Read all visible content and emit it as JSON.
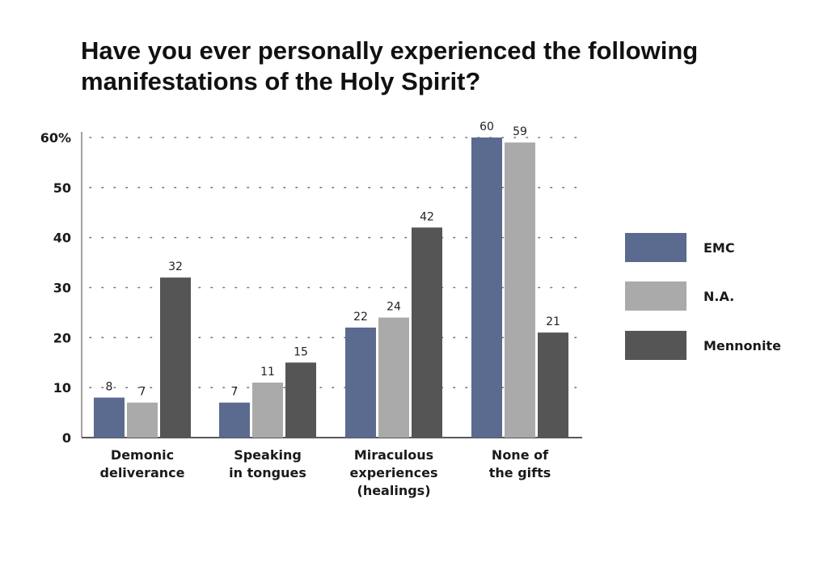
{
  "chart_data": {
    "type": "bar",
    "title": "Have you ever personally experienced the following manifestations of the Holy Spirit?",
    "xlabel": "",
    "ylabel": "",
    "ylim": [
      0,
      60
    ],
    "y_ticks": [
      "0",
      "10",
      "20",
      "30",
      "40",
      "50",
      "60%"
    ],
    "y_tick_values": [
      0,
      10,
      20,
      30,
      40,
      50,
      60
    ],
    "grid": "dotted horizontal",
    "legend_position": "right",
    "categories": [
      [
        "Demonic",
        "deliverance"
      ],
      [
        "Speaking",
        "in tongues"
      ],
      [
        "Miraculous",
        "experiences",
        "(healings)"
      ],
      [
        "None of",
        "the gifts"
      ]
    ],
    "series": [
      {
        "name": "EMC",
        "color": "#5b6a8f",
        "values": [
          8,
          7,
          22,
          60
        ]
      },
      {
        "name": "N.A.",
        "color": "#aaaaaa",
        "values": [
          7,
          11,
          24,
          59
        ]
      },
      {
        "name": "Mennonite",
        "color": "#555555",
        "values": [
          32,
          15,
          42,
          21
        ]
      }
    ]
  }
}
